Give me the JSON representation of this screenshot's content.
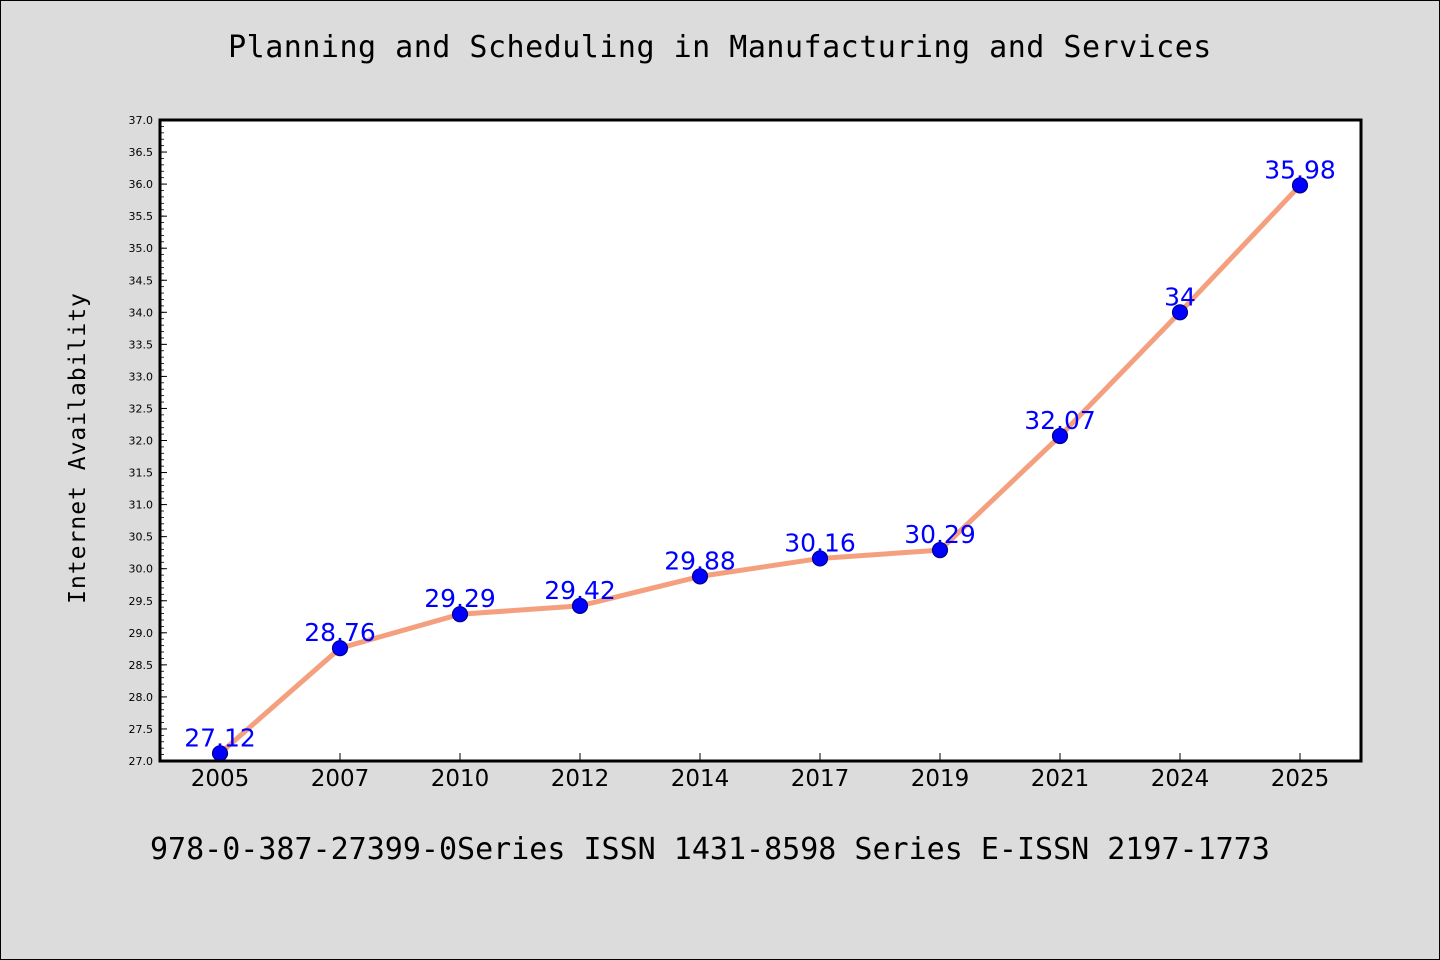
{
  "chart_data": {
    "type": "line",
    "title": "Planning and Scheduling in Manufacturing and Services",
    "xlabel": "",
    "ylabel": "Internet Availability",
    "categories": [
      "2005",
      "2007",
      "2010",
      "2012",
      "2014",
      "2017",
      "2019",
      "2021",
      "2024",
      "2025"
    ],
    "values": [
      27.12,
      28.76,
      29.29,
      29.42,
      29.88,
      30.16,
      30.29,
      32.07,
      34,
      35.98
    ],
    "data_labels": [
      "27.12",
      "28.76",
      "29.29",
      "29.42",
      "29.88",
      "30.16",
      "30.29",
      "32.07",
      "34",
      "35.98"
    ],
    "ylim": [
      27.0,
      37.0
    ],
    "yticks": [
      "27.0",
      "27.5",
      "28.0",
      "28.5",
      "29.0",
      "29.5",
      "30.0",
      "30.5",
      "31.0",
      "31.5",
      "32.0",
      "32.5",
      "33.0",
      "33.5",
      "34.0",
      "34.5",
      "35.0",
      "35.5",
      "36.0",
      "36.5",
      "37.0"
    ],
    "grid": false,
    "colors": {
      "line": "#f4a07f",
      "marker": "#0000ff",
      "marker_edge": "#00008b",
      "labels": "#0000ff",
      "background": "#dcdcdc",
      "plot_background": "#ffffff"
    }
  },
  "footer": "978-0-387-27399-0Series ISSN 1431-8598 Series E-ISSN 2197-1773"
}
